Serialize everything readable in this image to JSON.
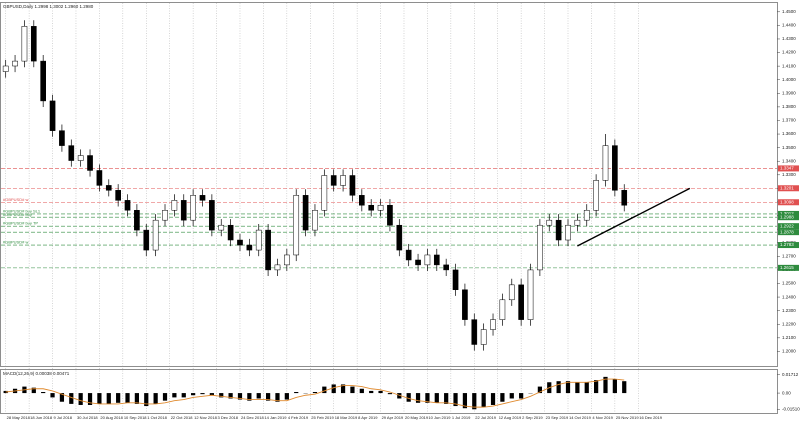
{
  "chart_data": [
    {
      "type": "candlestick",
      "title": "GBPUSD,Daily 1.2998 1.3002 1.2960 1.2980",
      "open": [
        1.406,
        1.4101,
        1.4137,
        1.4393,
        1.4137,
        1.3844,
        1.3625,
        1.3515,
        1.3405,
        1.3442,
        1.3332,
        1.3222,
        1.3186,
        1.3112,
        1.3039,
        1.2893,
        1.2746,
        1.2966,
        1.3039,
        1.3112,
        1.2966,
        1.3149,
        1.3112,
        1.2893,
        1.2929,
        1.282,
        1.2783,
        1.2746,
        1.2893,
        1.26,
        1.2637,
        1.271,
        1.3149,
        1.2893,
        1.3039,
        1.3295,
        1.3222,
        1.3295,
        1.3149,
        1.3076,
        1.3039,
        1.3076,
        1.2929,
        1.2746,
        1.2673,
        1.2637,
        1.271,
        1.2637,
        1.26,
        1.2454,
        1.2234,
        1.2051,
        1.2161,
        1.2234,
        1.238,
        1.249,
        1.2234,
        1.26,
        1.2929,
        1.2966,
        1.282,
        1.2929,
        1.2966,
        1.3039,
        1.3259,
        1.3515,
        1.3186
      ],
      "high": [
        1.4146,
        1.4182,
        1.4438,
        1.4438,
        1.4182,
        1.3889,
        1.367,
        1.356,
        1.3487,
        1.3487,
        1.3377,
        1.3267,
        1.3231,
        1.3157,
        1.3084,
        1.2938,
        1.3011,
        1.3084,
        1.3157,
        1.3157,
        1.3194,
        1.3194,
        1.3157,
        1.2974,
        1.2974,
        1.2865,
        1.2828,
        1.2938,
        1.2938,
        1.2682,
        1.2755,
        1.3194,
        1.3194,
        1.3084,
        1.334,
        1.334,
        1.334,
        1.334,
        1.3194,
        1.3121,
        1.3121,
        1.3121,
        1.2974,
        1.2791,
        1.2718,
        1.2755,
        1.2755,
        1.2682,
        1.2645,
        1.2499,
        1.2279,
        1.2206,
        1.2279,
        1.2425,
        1.2535,
        1.2535,
        1.2645,
        1.2974,
        1.3011,
        1.3011,
        1.2974,
        1.3011,
        1.3084,
        1.3304,
        1.36,
        1.356,
        1.3231
      ],
      "low": [
        1.4015,
        1.4056,
        1.4092,
        1.4092,
        1.3799,
        1.358,
        1.347,
        1.336,
        1.336,
        1.3287,
        1.3177,
        1.3141,
        1.3067,
        1.2994,
        1.2848,
        1.2701,
        1.2701,
        1.2921,
        1.2994,
        1.2921,
        1.2921,
        1.3067,
        1.2848,
        1.2848,
        1.2775,
        1.2738,
        1.2701,
        1.2701,
        1.2555,
        1.2555,
        1.2592,
        1.2665,
        1.2848,
        1.2848,
        1.2994,
        1.3177,
        1.3177,
        1.3104,
        1.3031,
        1.2994,
        1.2994,
        1.2884,
        1.2701,
        1.2628,
        1.2592,
        1.2592,
        1.2592,
        1.2555,
        1.2409,
        1.2189,
        1.2006,
        1.2006,
        1.2116,
        1.2189,
        1.2335,
        1.2189,
        1.2189,
        1.2555,
        1.2884,
        1.2775,
        1.2775,
        1.2884,
        1.2921,
        1.2994,
        1.3214,
        1.3141,
        1.3031
      ],
      "close": [
        1.4101,
        1.4137,
        1.4393,
        1.4137,
        1.3844,
        1.3625,
        1.3515,
        1.3405,
        1.3442,
        1.3332,
        1.3222,
        1.3186,
        1.3112,
        1.3039,
        1.2893,
        1.2746,
        1.2966,
        1.3039,
        1.3112,
        1.2966,
        1.3149,
        1.3112,
        1.2893,
        1.2929,
        1.282,
        1.2783,
        1.2746,
        1.2893,
        1.26,
        1.2637,
        1.271,
        1.3149,
        1.2893,
        1.3039,
        1.3295,
        1.3222,
        1.3295,
        1.3149,
        1.3076,
        1.3039,
        1.3076,
        1.2929,
        1.2746,
        1.2673,
        1.2637,
        1.271,
        1.2637,
        1.26,
        1.2454,
        1.2234,
        1.2051,
        1.2161,
        1.2234,
        1.238,
        1.249,
        1.2234,
        1.26,
        1.2929,
        1.2966,
        1.282,
        1.2929,
        1.2966,
        1.3039,
        1.3259,
        1.3515,
        1.3186,
        1.3076
      ],
      "up_color": "#ffffff",
      "down_color": "#000000",
      "xlim": [
        -0.5,
        82.3
      ],
      "xticks": [
        {
          "value": 0,
          "label": "28 May 2018"
        },
        {
          "value": 2.5,
          "label": "18 Jun 2018"
        },
        {
          "value": 5,
          "label": "9 Jul 2018"
        },
        {
          "value": 7.5,
          "label": "30 Jul 2018"
        },
        {
          "value": 10,
          "label": "20 Aug 2018"
        },
        {
          "value": 12.5,
          "label": "10 Sep 2018"
        },
        {
          "value": 15,
          "label": "1 Oct 2018"
        },
        {
          "value": 17.5,
          "label": "22 Oct 2018"
        },
        {
          "value": 20,
          "label": "12 Nov 2018"
        },
        {
          "value": 22.5,
          "label": "3 Dec 2018"
        },
        {
          "value": 25,
          "label": "24 Dec 2018"
        },
        {
          "value": 27.5,
          "label": "14 Jan 2019"
        },
        {
          "value": 30,
          "label": "4 Feb 2019"
        },
        {
          "value": 32.5,
          "label": "25 Feb 2019"
        },
        {
          "value": 35,
          "label": "18 Mar 2019"
        },
        {
          "value": 37.5,
          "label": "8 Apr 2019"
        },
        {
          "value": 40,
          "label": "29 Apr 2019"
        },
        {
          "value": 42.5,
          "label": "20 May 2019"
        },
        {
          "value": 45,
          "label": "10 Jun 2019"
        },
        {
          "value": 47.5,
          "label": "1 Jul 2019"
        },
        {
          "value": 50,
          "label": "22 Jul 2019"
        },
        {
          "value": 52.5,
          "label": "12 Aug 2019"
        },
        {
          "value": 55,
          "label": "2 Sep 2019"
        },
        {
          "value": 57.5,
          "label": "23 Sep 2019"
        },
        {
          "value": 60,
          "label": "14 Oct 2019"
        },
        {
          "value": 62.5,
          "label": "4 Nov 2019"
        },
        {
          "value": 65,
          "label": "25 Nov 2019"
        },
        {
          "value": 67.5,
          "label": "16 Dec 2019"
        }
      ],
      "ylim": [
        1.19,
        1.455
      ],
      "yticks": [
        {
          "value": 1.2,
          "label": "1.2000"
        },
        {
          "value": 1.21,
          "label": "1.2100"
        },
        {
          "value": 1.22,
          "label": "1.2200"
        },
        {
          "value": 1.23,
          "label": "1.2300"
        },
        {
          "value": 1.24,
          "label": "1.2400"
        },
        {
          "value": 1.25,
          "label": "1.2500"
        },
        {
          "value": 1.26,
          "label": "1.2600"
        },
        {
          "value": 1.27,
          "label": "1.2700"
        },
        {
          "value": 1.28,
          "label": "1.2800"
        },
        {
          "value": 1.29,
          "label": "1.2900"
        },
        {
          "value": 1.3,
          "label": "1.3000"
        },
        {
          "value": 1.31,
          "label": "1.3100"
        },
        {
          "value": 1.32,
          "label": "1.3200"
        },
        {
          "value": 1.33,
          "label": "1.3300"
        },
        {
          "value": 1.34,
          "label": "1.3400"
        },
        {
          "value": 1.35,
          "label": "1.3500"
        },
        {
          "value": 1.36,
          "label": "1.3600"
        },
        {
          "value": 1.37,
          "label": "1.3700"
        },
        {
          "value": 1.38,
          "label": "1.3800"
        },
        {
          "value": 1.39,
          "label": "1.3900"
        },
        {
          "value": 1.4,
          "label": "1.4000"
        },
        {
          "value": 1.41,
          "label": "1.4100"
        },
        {
          "value": 1.42,
          "label": "1.4200"
        },
        {
          "value": 1.43,
          "label": "1.4300"
        },
        {
          "value": 1.44,
          "label": "1.4400"
        },
        {
          "value": 1.45,
          "label": "1.4500"
        }
      ],
      "grid": "x",
      "levels": [
        {
          "price": 1.3347,
          "color": "#e05050"
        },
        {
          "price": 1.3201,
          "color": "#e05050"
        },
        {
          "price": 1.3098,
          "color": "#e05050",
          "label": "#GBPUSD# w"
        },
        {
          "price": 1.3012,
          "color": "#2e8b3e",
          "label": "#GBPUSD# buy SL1"
        },
        {
          "price": 1.2988,
          "color": "#2e8b3e",
          "label": "#GBPUSD# buy"
        },
        {
          "price": 1.2922,
          "color": "#2e8b3e",
          "label": "#GBPUSD# buy TP"
        },
        {
          "price": 1.2878,
          "color": "#2e8b3e"
        },
        {
          "price": 1.2783,
          "color": "#2e8b3e",
          "label": "#GBPUSD# w"
        },
        {
          "price": 1.2615,
          "color": "#2e8b3e"
        }
      ],
      "trend_line": {
        "x": [
          61,
          73
        ],
        "y": [
          1.2776,
          1.32
        ],
        "color": "#000000"
      }
    },
    {
      "type": "macd",
      "title": "MACD(12,26,9) 0.00038 0.00471",
      "values": [
        0.002,
        0.004,
        0.006,
        0.005,
        0.001,
        -0.004,
        -0.008,
        -0.01,
        -0.011,
        -0.011,
        -0.01,
        -0.01,
        -0.009,
        -0.009,
        -0.01,
        -0.012,
        -0.01,
        -0.007,
        -0.004,
        -0.004,
        -0.002,
        -0.001,
        -0.002,
        -0.004,
        -0.005,
        -0.006,
        -0.007,
        -0.005,
        -0.007,
        -0.008,
        -0.006,
        0.001,
        0.0,
        0.001,
        0.006,
        0.008,
        0.008,
        0.006,
        0.004,
        0.002,
        0.002,
        -0.001,
        -0.005,
        -0.008,
        -0.009,
        -0.009,
        -0.009,
        -0.01,
        -0.012,
        -0.014,
        -0.015,
        -0.013,
        -0.011,
        -0.008,
        -0.005,
        -0.005,
        0.0,
        0.006,
        0.01,
        0.011,
        0.011,
        0.01,
        0.01,
        0.012,
        0.015,
        0.013,
        0.011
      ],
      "signal": [
        0.001,
        0.002,
        0.003,
        0.004,
        0.004,
        0.002,
        -0.001,
        -0.004,
        -0.007,
        -0.009,
        -0.01,
        -0.01,
        -0.01,
        -0.009,
        -0.009,
        -0.01,
        -0.01,
        -0.009,
        -0.007,
        -0.006,
        -0.004,
        -0.003,
        -0.002,
        -0.003,
        -0.004,
        -0.005,
        -0.006,
        -0.006,
        -0.006,
        -0.007,
        -0.007,
        -0.004,
        -0.002,
        -0.001,
        0.002,
        0.005,
        0.007,
        0.007,
        0.006,
        0.004,
        0.003,
        0.001,
        -0.002,
        -0.005,
        -0.007,
        -0.008,
        -0.009,
        -0.009,
        -0.01,
        -0.012,
        -0.013,
        -0.013,
        -0.012,
        -0.01,
        -0.008,
        -0.006,
        -0.003,
        0.001,
        0.005,
        0.008,
        0.01,
        0.01,
        0.01,
        0.011,
        0.013,
        0.013,
        0.012
      ],
      "bar_color": "#000000",
      "signal_color": "#e08a2e",
      "xlim": [
        -0.5,
        82.3
      ],
      "ylim": [
        -0.0175,
        0.0195
      ],
      "yticks": [
        {
          "value": 0.01712,
          "label": "0.01712"
        },
        {
          "value": 0,
          "label": "0.00"
        },
        {
          "value": -0.0151,
          "label": "-0.01510"
        }
      ]
    }
  ]
}
